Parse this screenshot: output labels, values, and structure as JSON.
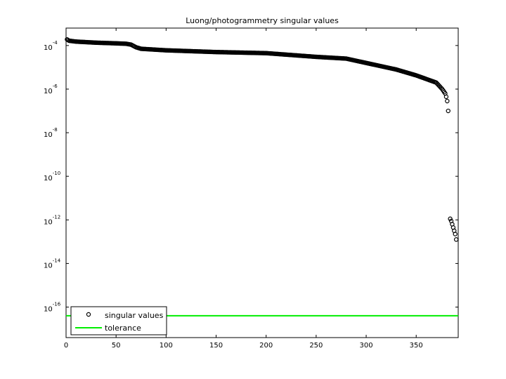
{
  "chart_data": {
    "type": "scatter",
    "title": "Luong/photogrammetry singular values",
    "xlabel": "",
    "ylabel": "",
    "xlim": [
      0,
      392
    ],
    "ylim_exp": [
      -17.4,
      -3.2
    ],
    "yscale": "log",
    "x_ticks": [
      0,
      50,
      100,
      150,
      200,
      250,
      300,
      350
    ],
    "y_ticks": [
      {
        "base": "10",
        "exp": "-4",
        "value": 0.0001
      },
      {
        "base": "10",
        "exp": "-6",
        "value": 1e-06
      },
      {
        "base": "10",
        "exp": "-8",
        "value": 1e-08
      },
      {
        "base": "10",
        "exp": "-10",
        "value": 1e-10
      },
      {
        "base": "10",
        "exp": "-12",
        "value": 1e-12
      },
      {
        "base": "10",
        "exp": "-14",
        "value": 1e-14
      },
      {
        "base": "10",
        "exp": "-16",
        "value": 1e-16
      }
    ],
    "series": [
      {
        "name": "singular values",
        "marker": "circle",
        "color": "#000000",
        "profile_log10": [
          [
            1,
            -3.72
          ],
          [
            3,
            -3.78
          ],
          [
            10,
            -3.82
          ],
          [
            30,
            -3.87
          ],
          [
            50,
            -3.9
          ],
          [
            60,
            -3.92
          ],
          [
            65,
            -3.96
          ],
          [
            70,
            -4.08
          ],
          [
            75,
            -4.15
          ],
          [
            100,
            -4.22
          ],
          [
            150,
            -4.3
          ],
          [
            200,
            -4.35
          ],
          [
            250,
            -4.52
          ],
          [
            280,
            -4.6
          ],
          [
            300,
            -4.8
          ],
          [
            330,
            -5.1
          ],
          [
            350,
            -5.37
          ],
          [
            370,
            -5.7
          ],
          [
            376,
            -6.0
          ],
          [
            379,
            -6.2
          ],
          [
            380,
            -6.35
          ],
          [
            381,
            -6.55
          ],
          [
            382,
            -7.0
          ]
        ],
        "x_range": [
          1,
          382
        ],
        "tail_x": [
          384,
          385,
          386,
          387,
          388,
          389,
          390
        ],
        "tail_log10": [
          -11.95,
          -12.05,
          -12.2,
          -12.35,
          -12.5,
          -12.65,
          -12.9
        ]
      },
      {
        "name": "tolerance",
        "type": "line",
        "color": "#00ee00",
        "value": 4e-17
      }
    ],
    "legend": {
      "position": "bottom-left",
      "labels": [
        "singular values",
        "tolerance"
      ]
    },
    "grid": false
  }
}
